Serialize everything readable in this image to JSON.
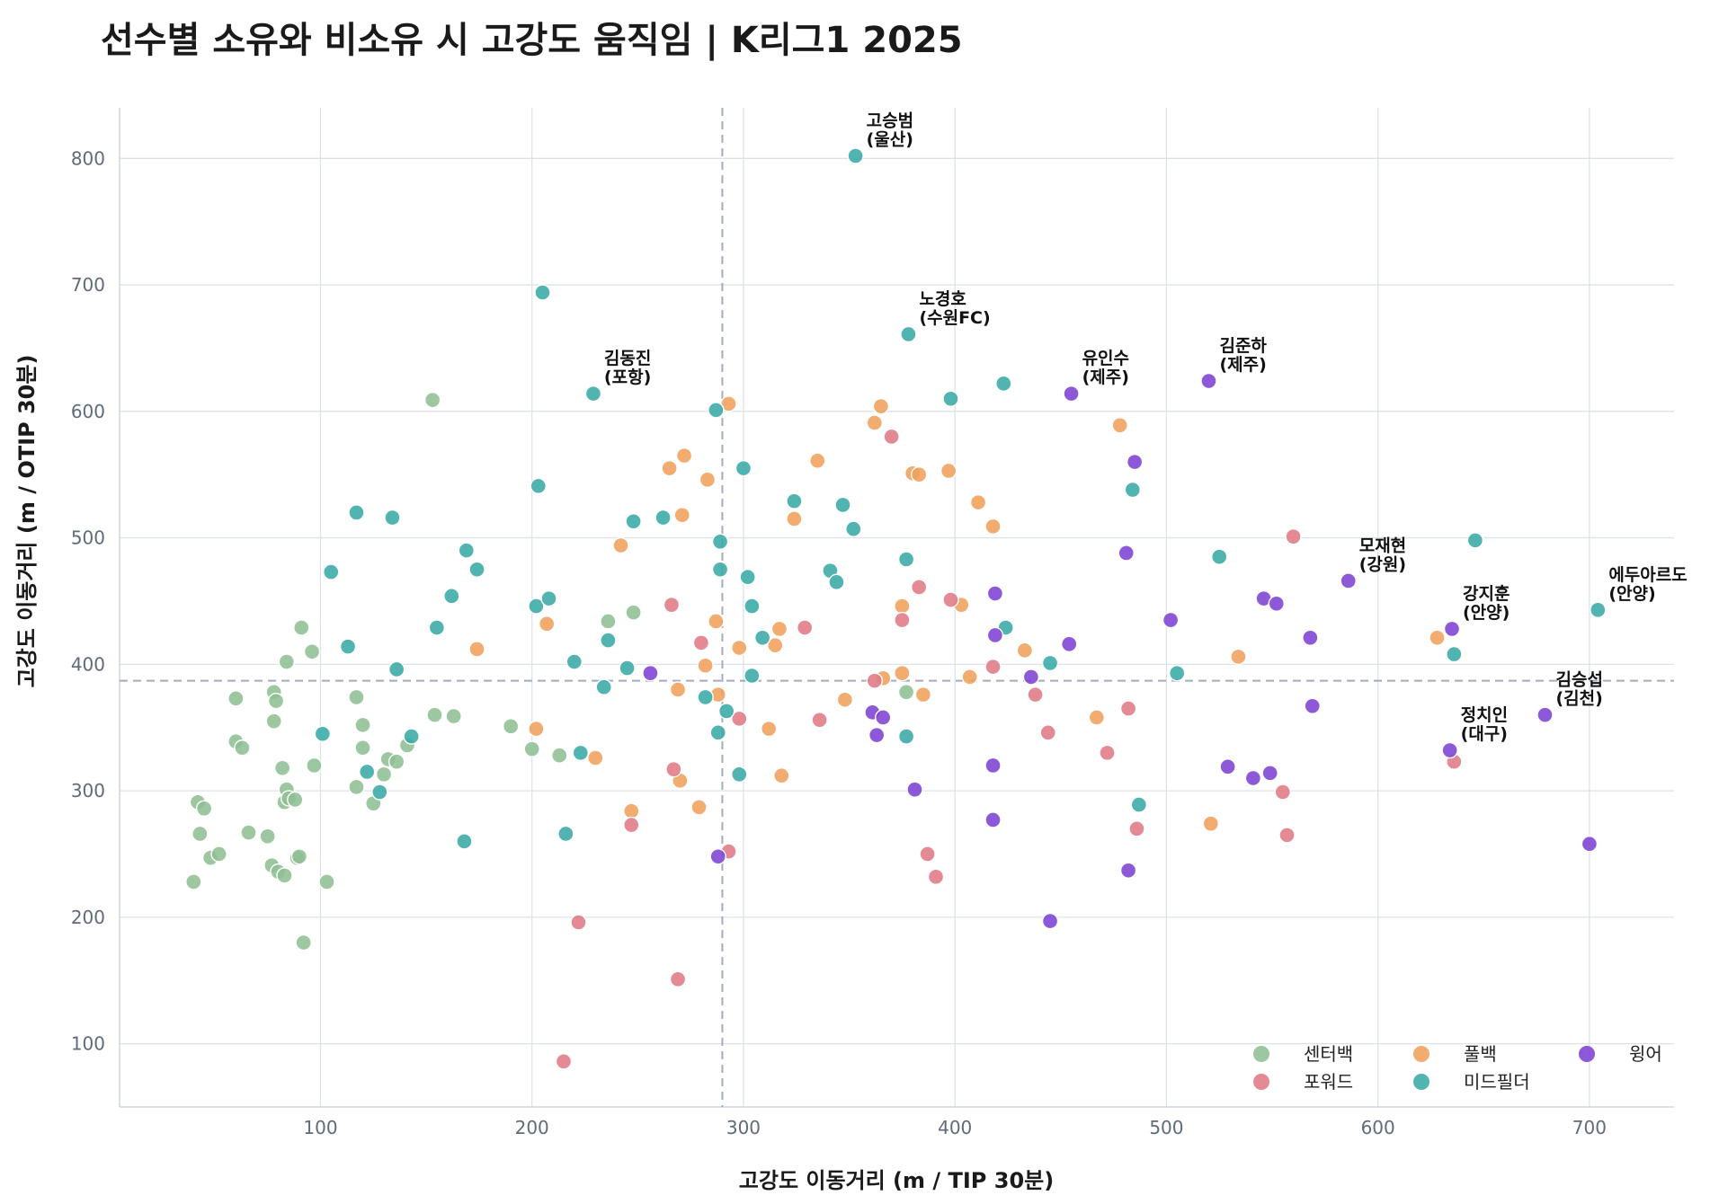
{
  "chart_data": {
    "type": "scatter",
    "title": "선수별 소유와 비소유 시 고강도 움직임 | K리그1 2025",
    "xlabel": "고강도 이동거리 (m / TIP 30분)",
    "ylabel": "고강도 이동거리 (m / OTIP 30분)",
    "xlim": [
      5,
      740
    ],
    "ylim": [
      50,
      840
    ],
    "xticks": [
      100,
      200,
      300,
      400,
      500,
      600,
      700
    ],
    "yticks": [
      100,
      200,
      300,
      400,
      500,
      600,
      700,
      800
    ],
    "grid": true,
    "reference_lines": {
      "x": 290,
      "y": 387
    },
    "legend_position": "lower-right",
    "series": [
      {
        "name": "센터백",
        "color": "#8fbf94",
        "points": [
          [
            40,
            228
          ],
          [
            42,
            291
          ],
          [
            43,
            266
          ],
          [
            45,
            286
          ],
          [
            48,
            247
          ],
          [
            52,
            250
          ],
          [
            60,
            373
          ],
          [
            60,
            339
          ],
          [
            63,
            334
          ],
          [
            66,
            267
          ],
          [
            75,
            264
          ],
          [
            77,
            241
          ],
          [
            78,
            378
          ],
          [
            79,
            371
          ],
          [
            78,
            355
          ],
          [
            80,
            236
          ],
          [
            82,
            318
          ],
          [
            83,
            233
          ],
          [
            83,
            291
          ],
          [
            84,
            402
          ],
          [
            84,
            301
          ],
          [
            85,
            294
          ],
          [
            88,
            293
          ],
          [
            89,
            247
          ],
          [
            90,
            248
          ],
          [
            91,
            429
          ],
          [
            92,
            180
          ],
          [
            96,
            410
          ],
          [
            97,
            320
          ],
          [
            103,
            228
          ],
          [
            117,
            374
          ],
          [
            117,
            303
          ],
          [
            120,
            352
          ],
          [
            120,
            334
          ],
          [
            125,
            290
          ],
          [
            130,
            313
          ],
          [
            132,
            325
          ],
          [
            136,
            323
          ],
          [
            141,
            336
          ],
          [
            153,
            609
          ],
          [
            154,
            360
          ],
          [
            163,
            359
          ],
          [
            190,
            351
          ],
          [
            200,
            333
          ],
          [
            213,
            328
          ],
          [
            236,
            434
          ],
          [
            248,
            441
          ],
          [
            377,
            378
          ]
        ]
      },
      {
        "name": "풀백",
        "color": "#f0a05b",
        "points": [
          [
            174,
            412
          ],
          [
            202,
            349
          ],
          [
            207,
            432
          ],
          [
            230,
            326
          ],
          [
            242,
            494
          ],
          [
            247,
            284
          ],
          [
            265,
            555
          ],
          [
            269,
            380
          ],
          [
            270,
            308
          ],
          [
            271,
            518
          ],
          [
            272,
            565
          ],
          [
            279,
            287
          ],
          [
            282,
            399
          ],
          [
            283,
            546
          ],
          [
            287,
            434
          ],
          [
            288,
            376
          ],
          [
            293,
            606
          ],
          [
            298,
            413
          ],
          [
            312,
            349
          ],
          [
            315,
            415
          ],
          [
            317,
            428
          ],
          [
            318,
            312
          ],
          [
            324,
            515
          ],
          [
            335,
            561
          ],
          [
            348,
            372
          ],
          [
            362,
            591
          ],
          [
            365,
            604
          ],
          [
            366,
            389
          ],
          [
            375,
            446
          ],
          [
            375,
            393
          ],
          [
            380,
            551
          ],
          [
            383,
            550
          ],
          [
            385,
            376
          ],
          [
            397,
            553
          ],
          [
            403,
            447
          ],
          [
            407,
            390
          ],
          [
            411,
            528
          ],
          [
            418,
            509
          ],
          [
            433,
            411
          ],
          [
            467,
            358
          ],
          [
            478,
            589
          ],
          [
            521,
            274
          ],
          [
            534,
            406
          ],
          [
            628,
            421
          ]
        ]
      },
      {
        "name": "포워드",
        "color": "#e07a85",
        "points": [
          [
            215,
            86
          ],
          [
            222,
            196
          ],
          [
            247,
            273
          ],
          [
            266,
            447
          ],
          [
            267,
            317
          ],
          [
            269,
            151
          ],
          [
            280,
            417
          ],
          [
            293,
            252
          ],
          [
            298,
            357
          ],
          [
            329,
            429
          ],
          [
            336,
            356
          ],
          [
            362,
            387
          ],
          [
            370,
            580
          ],
          [
            375,
            435
          ],
          [
            383,
            461
          ],
          [
            387,
            250
          ],
          [
            391,
            232
          ],
          [
            398,
            451
          ],
          [
            418,
            398
          ],
          [
            438,
            376
          ],
          [
            444,
            346
          ],
          [
            472,
            330
          ],
          [
            482,
            365
          ],
          [
            486,
            270
          ],
          [
            555,
            299
          ],
          [
            557,
            265
          ],
          [
            560,
            501
          ],
          [
            636,
            323
          ]
        ]
      },
      {
        "name": "미드필더",
        "color": "#3aaaa6",
        "points": [
          [
            101,
            345
          ],
          [
            105,
            473
          ],
          [
            113,
            414
          ],
          [
            117,
            520
          ],
          [
            122,
            315
          ],
          [
            128,
            299
          ],
          [
            134,
            516
          ],
          [
            136,
            396
          ],
          [
            143,
            343
          ],
          [
            155,
            429
          ],
          [
            162,
            454
          ],
          [
            168,
            260
          ],
          [
            169,
            490
          ],
          [
            174,
            475
          ],
          [
            202,
            446
          ],
          [
            203,
            541
          ],
          [
            205,
            694
          ],
          [
            208,
            452
          ],
          [
            216,
            266
          ],
          [
            220,
            402
          ],
          [
            223,
            330
          ],
          [
            229,
            614
          ],
          [
            234,
            382
          ],
          [
            236,
            419
          ],
          [
            245,
            397
          ],
          [
            248,
            513
          ],
          [
            262,
            516
          ],
          [
            282,
            374
          ],
          [
            287,
            601
          ],
          [
            288,
            346
          ],
          [
            289,
            475
          ],
          [
            289,
            497
          ],
          [
            292,
            363
          ],
          [
            298,
            313
          ],
          [
            300,
            555
          ],
          [
            302,
            469
          ],
          [
            304,
            446
          ],
          [
            304,
            391
          ],
          [
            309,
            421
          ],
          [
            324,
            529
          ],
          [
            341,
            474
          ],
          [
            344,
            465
          ],
          [
            347,
            526
          ],
          [
            352,
            507
          ],
          [
            353,
            802
          ],
          [
            377,
            483
          ],
          [
            377,
            343
          ],
          [
            378,
            661
          ],
          [
            398,
            610
          ],
          [
            423,
            622
          ],
          [
            424,
            429
          ],
          [
            445,
            401
          ],
          [
            484,
            538
          ],
          [
            487,
            289
          ],
          [
            505,
            393
          ],
          [
            525,
            485
          ],
          [
            636,
            408
          ],
          [
            646,
            498
          ],
          [
            704,
            443
          ]
        ]
      },
      {
        "name": "윙어",
        "color": "#7d42d4",
        "points": [
          [
            256,
            393
          ],
          [
            288,
            248
          ],
          [
            361,
            362
          ],
          [
            363,
            344
          ],
          [
            366,
            358
          ],
          [
            381,
            301
          ],
          [
            418,
            320
          ],
          [
            418,
            277
          ],
          [
            419,
            456
          ],
          [
            419,
            423
          ],
          [
            436,
            390
          ],
          [
            445,
            197
          ],
          [
            454,
            416
          ],
          [
            455,
            614
          ],
          [
            481,
            488
          ],
          [
            482,
            237
          ],
          [
            485,
            560
          ],
          [
            502,
            435
          ],
          [
            520,
            624
          ],
          [
            529,
            319
          ],
          [
            541,
            310
          ],
          [
            546,
            452
          ],
          [
            549,
            314
          ],
          [
            552,
            448
          ],
          [
            568,
            421
          ],
          [
            569,
            367
          ],
          [
            586,
            466
          ],
          [
            634,
            332
          ],
          [
            635,
            428
          ],
          [
            679,
            360
          ],
          [
            700,
            258
          ]
        ]
      }
    ],
    "annotations": [
      {
        "name": "고승범",
        "team": "(울산)",
        "x": 353,
        "y": 802
      },
      {
        "name": "노경호",
        "team": "(수원FC)",
        "x": 378,
        "y": 661
      },
      {
        "name": "김동진",
        "team": "(포항)",
        "x": 229,
        "y": 614
      },
      {
        "name": "유인수",
        "team": "(제주)",
        "x": 455,
        "y": 614
      },
      {
        "name": "김준하",
        "team": "(제주)",
        "x": 520,
        "y": 624
      },
      {
        "name": "모재현",
        "team": "(강원)",
        "x": 586,
        "y": 466
      },
      {
        "name": "에두아르도",
        "team": "(안양)",
        "x": 704,
        "y": 443
      },
      {
        "name": "강지훈",
        "team": "(안양)",
        "x": 635,
        "y": 428
      },
      {
        "name": "김승섭",
        "team": "(김천)",
        "x": 679,
        "y": 360
      },
      {
        "name": "정치인",
        "team": "(대구)",
        "x": 634,
        "y": 332
      }
    ]
  }
}
